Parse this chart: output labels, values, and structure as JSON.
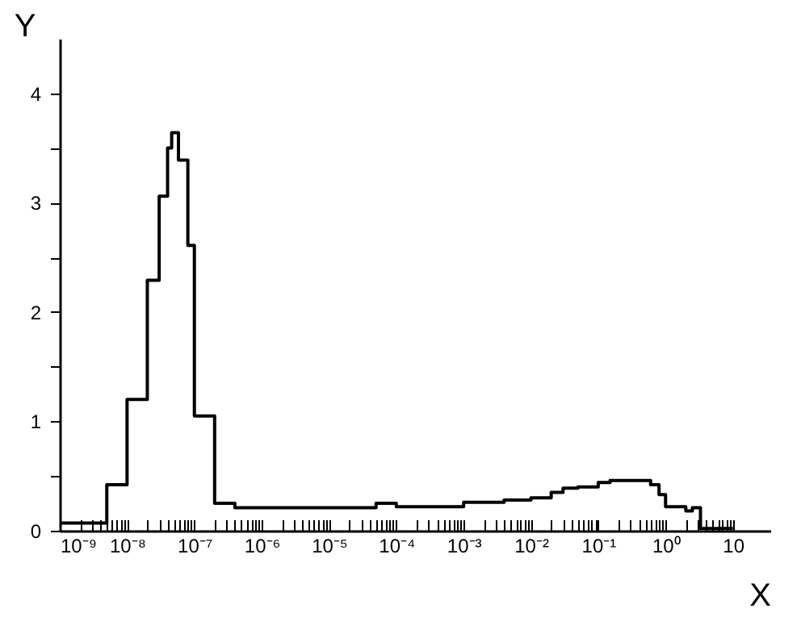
{
  "chart_data": {
    "type": "step",
    "xlabel": "X",
    "ylabel": "Y",
    "log": "x",
    "grid": false,
    "marker": "none",
    "line_style": "solid",
    "x": [
      1e-09,
      5e-09,
      1e-08,
      2e-08,
      3e-08,
      4e-08,
      4.6e-08,
      5.8e-08,
      8e-08,
      1e-07,
      2e-07,
      4e-07,
      5e-05,
      0.0001,
      0.001,
      0.004,
      0.01,
      0.02,
      0.03,
      0.05,
      0.1,
      0.15,
      0.4,
      0.6,
      0.8,
      1,
      2,
      2.5,
      3.3,
      10
    ],
    "series": [
      {
        "color": "#000000",
        "values": [
          0.07,
          0.42,
          1.2,
          2.29,
          3.06,
          3.5,
          3.64,
          3.39,
          2.61,
          1.05,
          0.25,
          0.21,
          0.25,
          0.22,
          0.26,
          0.28,
          0.3,
          0.35,
          0.39,
          0.4,
          0.44,
          0.46,
          0.46,
          0.42,
          0.33,
          0.22,
          0.18,
          0.21,
          0.02,
          0.02
        ]
      }
    ],
    "xlim": [
      1e-09,
      36
    ],
    "ylim": [
      0,
      4.5
    ],
    "xticks": [
      {
        "value": 1e-09,
        "label": "10⁻⁹"
      },
      {
        "value": 2e-09,
        "label": null
      },
      {
        "value": 3e-09,
        "label": null
      },
      {
        "value": 4e-09,
        "label": null
      },
      {
        "value": 5e-09,
        "label": null
      },
      {
        "value": 6e-09,
        "label": null
      },
      {
        "value": 7e-09,
        "label": null
      },
      {
        "value": 8e-09,
        "label": null
      },
      {
        "value": 9e-09,
        "label": null
      },
      {
        "value": 1e-08,
        "label": "10⁻⁸"
      },
      {
        "value": 2e-08,
        "label": null
      },
      {
        "value": 3e-08,
        "label": null
      },
      {
        "value": 4e-08,
        "label": null
      },
      {
        "value": 5e-08,
        "label": null
      },
      {
        "value": 6e-08,
        "label": null
      },
      {
        "value": 7e-08,
        "label": null
      },
      {
        "value": 8e-08,
        "label": null
      },
      {
        "value": 9e-08,
        "label": null
      },
      {
        "value": 1e-07,
        "label": "10⁻⁷"
      },
      {
        "value": 2e-07,
        "label": null
      },
      {
        "value": 3e-07,
        "label": null
      },
      {
        "value": 4e-07,
        "label": null
      },
      {
        "value": 5e-07,
        "label": null
      },
      {
        "value": 6e-07,
        "label": null
      },
      {
        "value": 7e-07,
        "label": null
      },
      {
        "value": 8e-07,
        "label": null
      },
      {
        "value": 9e-07,
        "label": null
      },
      {
        "value": 1e-06,
        "label": "10⁻⁶"
      },
      {
        "value": 2e-06,
        "label": null
      },
      {
        "value": 3e-06,
        "label": null
      },
      {
        "value": 4e-06,
        "label": null
      },
      {
        "value": 5e-06,
        "label": null
      },
      {
        "value": 6e-06,
        "label": null
      },
      {
        "value": 7e-06,
        "label": null
      },
      {
        "value": 8e-06,
        "label": null
      },
      {
        "value": 9e-06,
        "label": null
      },
      {
        "value": 1e-05,
        "label": "10⁻⁵"
      },
      {
        "value": 2e-05,
        "label": null
      },
      {
        "value": 3e-05,
        "label": null
      },
      {
        "value": 4e-05,
        "label": null
      },
      {
        "value": 5e-05,
        "label": null
      },
      {
        "value": 6e-05,
        "label": null
      },
      {
        "value": 7e-05,
        "label": null
      },
      {
        "value": 8e-05,
        "label": null
      },
      {
        "value": 9e-05,
        "label": null
      },
      {
        "value": 0.0001,
        "label": "10⁻⁴"
      },
      {
        "value": 0.0002,
        "label": null
      },
      {
        "value": 0.0003,
        "label": null
      },
      {
        "value": 0.0004,
        "label": null
      },
      {
        "value": 0.0005,
        "label": null
      },
      {
        "value": 0.0006,
        "label": null
      },
      {
        "value": 0.0007,
        "label": null
      },
      {
        "value": 0.0008,
        "label": null
      },
      {
        "value": 0.0009,
        "label": null
      },
      {
        "value": 0.001,
        "label": "10⁻³"
      },
      {
        "value": 0.002,
        "label": null
      },
      {
        "value": 0.003,
        "label": null
      },
      {
        "value": 0.004,
        "label": null
      },
      {
        "value": 0.005,
        "label": null
      },
      {
        "value": 0.006,
        "label": null
      },
      {
        "value": 0.007,
        "label": null
      },
      {
        "value": 0.008,
        "label": null
      },
      {
        "value": 0.009,
        "label": null
      },
      {
        "value": 0.01,
        "label": "10⁻²"
      },
      {
        "value": 0.02,
        "label": null
      },
      {
        "value": 0.03,
        "label": null
      },
      {
        "value": 0.04,
        "label": null
      },
      {
        "value": 0.05,
        "label": null
      },
      {
        "value": 0.06,
        "label": null
      },
      {
        "value": 0.07,
        "label": null
      },
      {
        "value": 0.08,
        "label": null
      },
      {
        "value": 0.09,
        "label": null
      },
      {
        "value": 0.1,
        "label": "10⁻¹"
      },
      {
        "value": 0.2,
        "label": null
      },
      {
        "value": 0.3,
        "label": null
      },
      {
        "value": 0.4,
        "label": null
      },
      {
        "value": 0.5,
        "label": null
      },
      {
        "value": 0.6,
        "label": null
      },
      {
        "value": 0.7,
        "label": null
      },
      {
        "value": 0.8,
        "label": null
      },
      {
        "value": 0.9,
        "label": null
      },
      {
        "value": 1,
        "label": "10⁰"
      },
      {
        "value": 2,
        "label": null
      },
      {
        "value": 3,
        "label": null
      },
      {
        "value": 4,
        "label": null
      },
      {
        "value": 5,
        "label": null
      },
      {
        "value": 6,
        "label": null
      },
      {
        "value": 7,
        "label": null
      },
      {
        "value": 8,
        "label": null
      },
      {
        "value": 9,
        "label": null
      },
      {
        "value": 10,
        "label": "10"
      }
    ],
    "yticks": [
      0,
      {
        "value": 0.5,
        "label": null
      },
      1,
      {
        "value": 1.5,
        "label": null
      },
      2,
      {
        "value": 2.5,
        "label": null
      },
      3,
      {
        "value": 3.5,
        "label": null
      },
      4
    ]
  }
}
